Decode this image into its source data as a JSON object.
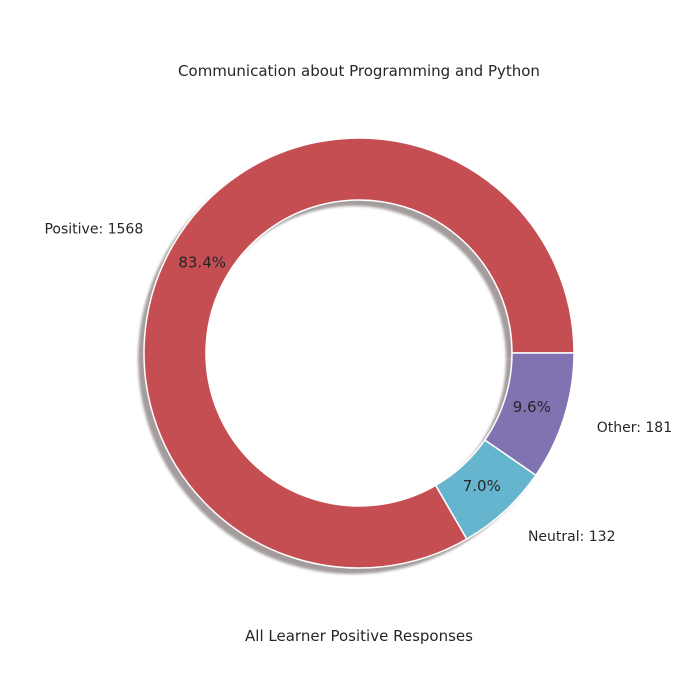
{
  "chart_data": {
    "type": "pie",
    "variant": "donut",
    "title": "Communication about Programming and Python",
    "xlabel": "All Learner Positive Responses",
    "shadow": true,
    "slices": [
      {
        "label": "Positive: 1568",
        "value": 1568,
        "pct_label": "83.4%",
        "color": "#c44e52"
      },
      {
        "label": "Neutral: 132",
        "value": 132,
        "pct_label": "7.0%",
        "color": "#64b5cd"
      },
      {
        "label": "Other: 181",
        "value": 181,
        "pct_label": "9.6%",
        "color": "#8172b2"
      }
    ]
  }
}
